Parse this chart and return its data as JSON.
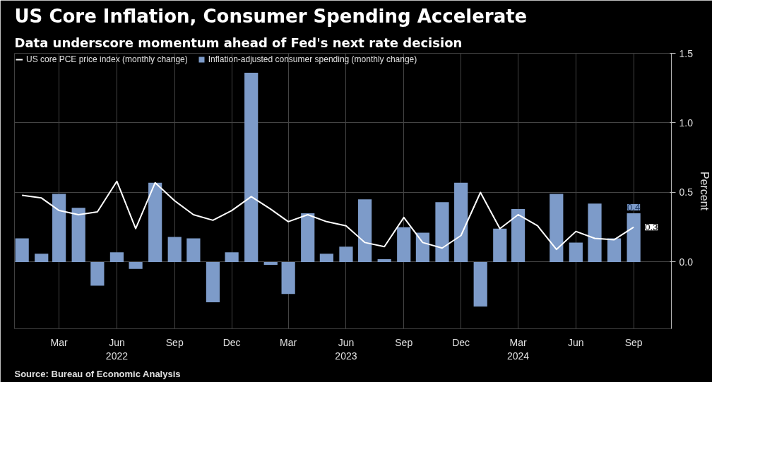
{
  "chart_data": {
    "type": "bar",
    "title": "US Core Inflation, Consumer Spending Accelerate",
    "subtitle": "Data underscore momentum ahead of Fed's next rate decision",
    "ylabel": "Percent",
    "x": [
      "2022-01",
      "2022-02",
      "2022-03",
      "2022-04",
      "2022-05",
      "2022-06",
      "2022-07",
      "2022-08",
      "2022-09",
      "2022-10",
      "2022-11",
      "2022-12",
      "2023-01",
      "2023-02",
      "2023-03",
      "2023-04",
      "2023-05",
      "2023-06",
      "2023-07",
      "2023-08",
      "2023-09",
      "2023-10",
      "2023-11",
      "2023-12",
      "2024-01",
      "2024-02",
      "2024-03",
      "2024-04",
      "2024-05",
      "2024-06",
      "2024-07",
      "2024-08",
      "2024-09"
    ],
    "series": [
      {
        "name": "US core PCE price index (monthly change)",
        "type": "line",
        "color": "#ffffff",
        "values": [
          0.48,
          0.46,
          0.37,
          0.34,
          0.36,
          0.58,
          0.24,
          0.57,
          0.44,
          0.34,
          0.3,
          0.37,
          0.47,
          0.38,
          0.29,
          0.34,
          0.29,
          0.26,
          0.14,
          0.11,
          0.32,
          0.14,
          0.1,
          0.19,
          0.5,
          0.24,
          0.34,
          0.26,
          0.09,
          0.22,
          0.17,
          0.16,
          0.25
        ],
        "value_labels": [
          null,
          null,
          null,
          null,
          null,
          null,
          null,
          null,
          null,
          null,
          null,
          null,
          null,
          null,
          null,
          null,
          null,
          null,
          null,
          null,
          null,
          null,
          null,
          null,
          null,
          null,
          null,
          null,
          null,
          null,
          null,
          null,
          "0.3"
        ]
      },
      {
        "name": "Inflation-adjusted consumer spending (monthly change)",
        "color": "#7d9bc9",
        "values": [
          0.17,
          0.06,
          0.49,
          0.39,
          -0.17,
          0.07,
          -0.05,
          0.57,
          0.18,
          0.17,
          -0.29,
          0.07,
          1.36,
          -0.02,
          -0.23,
          0.35,
          0.06,
          0.11,
          0.45,
          0.02,
          0.25,
          0.21,
          0.43,
          0.57,
          -0.32,
          0.24,
          0.38,
          0.0,
          0.49,
          0.14,
          0.42,
          0.17,
          0.35
        ],
        "value_labels": [
          null,
          null,
          null,
          null,
          null,
          null,
          null,
          null,
          null,
          null,
          null,
          null,
          null,
          null,
          null,
          null,
          null,
          null,
          null,
          null,
          null,
          null,
          null,
          null,
          null,
          null,
          null,
          null,
          null,
          null,
          null,
          null,
          "0.4"
        ]
      }
    ],
    "xlim": [
      "2021-12-20",
      "2024-10-31"
    ],
    "xticks": [
      {
        "value": "2022-03",
        "label": "Mar"
      },
      {
        "value": "2022-06",
        "label": "Jun\n2022"
      },
      {
        "value": "2022-09",
        "label": "Sep"
      },
      {
        "value": "2022-12",
        "label": "Dec"
      },
      {
        "value": "2023-03",
        "label": "Mar"
      },
      {
        "value": "2023-06",
        "label": "Jun\n2023"
      },
      {
        "value": "2023-09",
        "label": "Sep"
      },
      {
        "value": "2023-12",
        "label": "Dec"
      },
      {
        "value": "2024-03",
        "label": "Mar\n2024"
      },
      {
        "value": "2024-06",
        "label": "Jun"
      },
      {
        "value": "2024-09",
        "label": "Sep"
      }
    ],
    "ylim": [
      -0.48,
      1.5
    ],
    "yticks": [
      {
        "value": 0,
        "label": "0.0"
      },
      {
        "value": 0.5,
        "label": "0.5"
      },
      {
        "value": 1,
        "label": "1.0"
      },
      {
        "value": 1.5,
        "label": "1.5"
      }
    ],
    "grid": true,
    "legend": "top left",
    "annotations": [
      "Source: Bureau of Economic Analysis"
    ]
  }
}
